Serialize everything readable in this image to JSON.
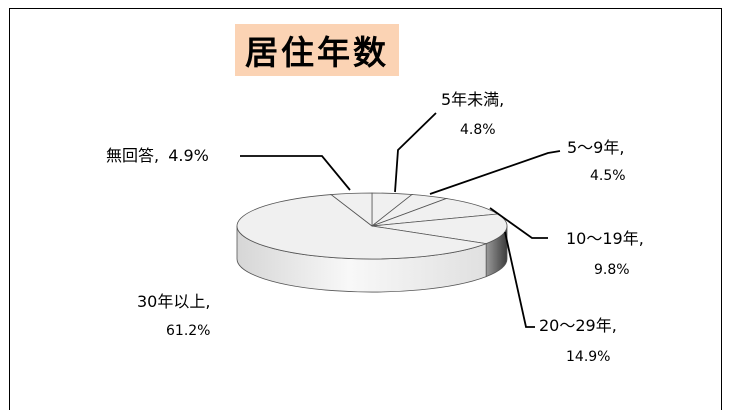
{
  "chart_data": {
    "type": "pie",
    "title": "居住年数",
    "slices": [
      {
        "label": "5年未満,",
        "percent": "4.8%",
        "value": 4.8
      },
      {
        "label": "5～9年,",
        "percent": "4.5%",
        "value": 4.5
      },
      {
        "label": "10～19年,",
        "percent": "9.8%",
        "value": 9.8
      },
      {
        "label": "20～29年,",
        "percent": "14.9%",
        "value": 14.9
      },
      {
        "label": "30年以上,",
        "percent": "61.2%",
        "value": 61.2
      },
      {
        "label": "無回答,",
        "percent": "4.9%",
        "value": 4.9
      }
    ],
    "colors": {
      "top": "#f0f0f0",
      "side_light": "#e8e8e8",
      "side_dark": "#5a5a5a",
      "stroke": "#555555"
    }
  }
}
